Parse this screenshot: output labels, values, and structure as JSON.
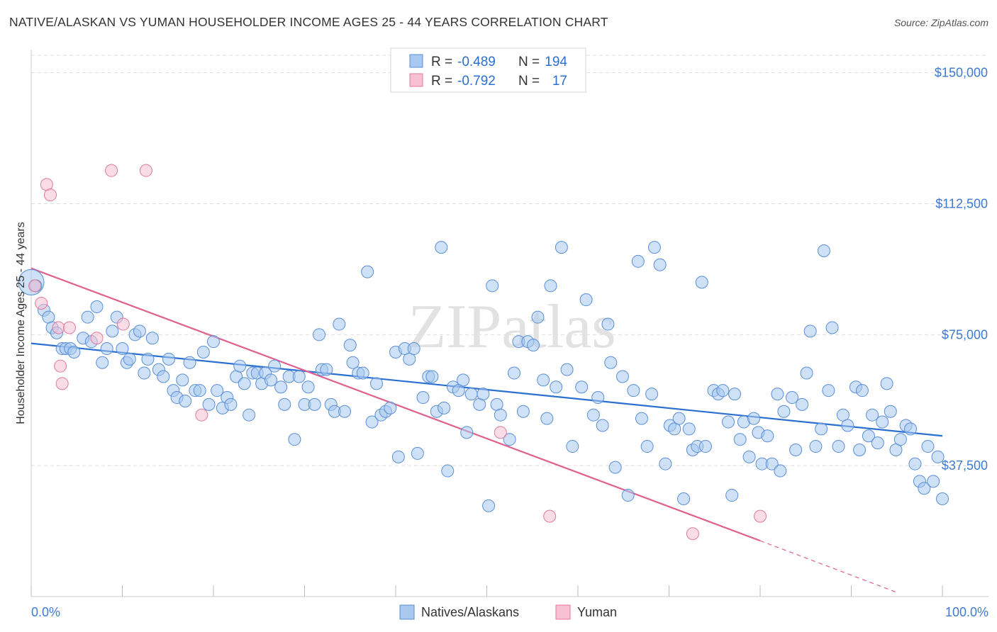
{
  "title": "NATIVE/ALASKAN VS YUMAN HOUSEHOLDER INCOME AGES 25 - 44 YEARS CORRELATION CHART",
  "source": "Source: ZipAtlas.com",
  "watermark": "ZIPatlas",
  "colors": {
    "blue_fill": "#a8c8f0",
    "blue_stroke": "#5a8fd6",
    "blue_line": "#2b6fd1",
    "pink_fill": "#f6c0d2",
    "pink_stroke": "#e07a9e",
    "pink_line": "#e0608e",
    "grid": "#dddddd",
    "accent_text": "#3d7ad0"
  },
  "legend": {
    "rows": [
      {
        "r_label": "R =",
        "r_value": "-0.489",
        "n_label": "N =",
        "n_value": "194"
      },
      {
        "r_label": "R =",
        "r_value": "-0.792",
        "n_label": "N =",
        "n_value": "17"
      }
    ]
  },
  "bottom_legend": [
    "Natives/Alaskans",
    "Yuman"
  ],
  "chart_data": {
    "type": "scatter",
    "ylabel": "Householder Income Ages 25 - 44 years",
    "xlabel": "",
    "x_tick_labels": [
      "0.0%",
      "100.0%"
    ],
    "y_tick_labels": [
      "$150,000",
      "$112,500",
      "$75,000",
      "$37,500"
    ],
    "y_ticks": [
      150000,
      112500,
      75000,
      37500
    ],
    "xlim": [
      0,
      100
    ],
    "ylim": [
      0,
      155000
    ],
    "grid": true,
    "legend_position": "top-center",
    "series": [
      {
        "name": "Natives/Alaskans",
        "r": -0.489,
        "n": 194,
        "trend": {
          "x0": 0,
          "y0": 72500,
          "x1": 100,
          "y1": 46000
        },
        "points": [
          [
            0,
            90000
          ],
          [
            0.5,
            89000
          ],
          [
            1.4,
            82000
          ],
          [
            1.9,
            80000
          ],
          [
            2.3,
            77000
          ],
          [
            2.8,
            75500
          ],
          [
            3.4,
            71000
          ],
          [
            3.8,
            71000
          ],
          [
            4.3,
            71000
          ],
          [
            4.7,
            70000
          ],
          [
            5.7,
            74000
          ],
          [
            6.2,
            80000
          ],
          [
            6.6,
            73000
          ],
          [
            7.2,
            83000
          ],
          [
            7.8,
            67000
          ],
          [
            8.3,
            71000
          ],
          [
            8.9,
            76000
          ],
          [
            9.4,
            80000
          ],
          [
            10.0,
            71000
          ],
          [
            10.5,
            67000
          ],
          [
            10.8,
            68000
          ],
          [
            11.4,
            75000
          ],
          [
            11.9,
            76000
          ],
          [
            12.4,
            64000
          ],
          [
            12.8,
            68000
          ],
          [
            13.3,
            74000
          ],
          [
            14.0,
            65000
          ],
          [
            14.5,
            63000
          ],
          [
            15.1,
            68000
          ],
          [
            15.6,
            59000
          ],
          [
            16.0,
            57000
          ],
          [
            16.6,
            62000
          ],
          [
            16.9,
            56000
          ],
          [
            17.4,
            67000
          ],
          [
            18.0,
            59000
          ],
          [
            18.5,
            59000
          ],
          [
            18.9,
            70000
          ],
          [
            19.5,
            55000
          ],
          [
            20.0,
            73000
          ],
          [
            20.4,
            59000
          ],
          [
            21.0,
            54000
          ],
          [
            21.5,
            57000
          ],
          [
            21.9,
            55000
          ],
          [
            22.5,
            63000
          ],
          [
            22.9,
            66000
          ],
          [
            23.4,
            61000
          ],
          [
            23.9,
            52000
          ],
          [
            24.3,
            64000
          ],
          [
            24.8,
            64000
          ],
          [
            25.3,
            61000
          ],
          [
            25.7,
            64000
          ],
          [
            26.3,
            62000
          ],
          [
            26.7,
            66000
          ],
          [
            27.4,
            60000
          ],
          [
            27.8,
            55000
          ],
          [
            28.3,
            63000
          ],
          [
            28.9,
            45000
          ],
          [
            29.4,
            63000
          ],
          [
            30.0,
            55000
          ],
          [
            30.4,
            60000
          ],
          [
            31.1,
            55000
          ],
          [
            31.6,
            75000
          ],
          [
            31.9,
            65000
          ],
          [
            32.4,
            65000
          ],
          [
            32.9,
            55000
          ],
          [
            33.3,
            53000
          ],
          [
            33.8,
            78000
          ],
          [
            34.4,
            53000
          ],
          [
            35.0,
            72000
          ],
          [
            35.3,
            67000
          ],
          [
            35.9,
            64000
          ],
          [
            36.4,
            64000
          ],
          [
            36.9,
            93000
          ],
          [
            37.4,
            50000
          ],
          [
            37.9,
            61000
          ],
          [
            38.4,
            52000
          ],
          [
            38.9,
            53000
          ],
          [
            39.4,
            54000
          ],
          [
            40.0,
            70000
          ],
          [
            40.3,
            40000
          ],
          [
            41.0,
            71000
          ],
          [
            41.5,
            68000
          ],
          [
            42.0,
            71000
          ],
          [
            42.4,
            41000
          ],
          [
            43.0,
            57000
          ],
          [
            43.6,
            63000
          ],
          [
            44.0,
            63000
          ],
          [
            44.5,
            53000
          ],
          [
            45.0,
            100000
          ],
          [
            45.3,
            54000
          ],
          [
            45.7,
            36000
          ],
          [
            46.3,
            60000
          ],
          [
            46.9,
            59000
          ],
          [
            47.4,
            62000
          ],
          [
            47.8,
            47000
          ],
          [
            48.3,
            58000
          ],
          [
            49.2,
            55000
          ],
          [
            49.6,
            58000
          ],
          [
            50.2,
            26000
          ],
          [
            50.6,
            89000
          ],
          [
            51.1,
            55000
          ],
          [
            51.5,
            52000
          ],
          [
            52.5,
            45000
          ],
          [
            53.0,
            64000
          ],
          [
            53.5,
            73000
          ],
          [
            54.0,
            53000
          ],
          [
            54.5,
            73000
          ],
          [
            55.1,
            72000
          ],
          [
            55.6,
            80000
          ],
          [
            56.2,
            62000
          ],
          [
            56.6,
            51000
          ],
          [
            57.0,
            89000
          ],
          [
            57.6,
            60000
          ],
          [
            58.2,
            100000
          ],
          [
            58.8,
            65000
          ],
          [
            59.4,
            43000
          ],
          [
            60.4,
            60000
          ],
          [
            60.9,
            85000
          ],
          [
            61.7,
            52000
          ],
          [
            62.2,
            57000
          ],
          [
            62.7,
            49000
          ],
          [
            63.3,
            78000
          ],
          [
            63.6,
            67000
          ],
          [
            64.1,
            37000
          ],
          [
            64.9,
            63000
          ],
          [
            65.5,
            29000
          ],
          [
            66.1,
            59000
          ],
          [
            66.6,
            96000
          ],
          [
            67.0,
            51000
          ],
          [
            67.6,
            43000
          ],
          [
            68.1,
            58000
          ],
          [
            68.4,
            100000
          ],
          [
            69.0,
            95000
          ],
          [
            69.6,
            38000
          ],
          [
            70.1,
            49000
          ],
          [
            70.6,
            48000
          ],
          [
            71.1,
            51000
          ],
          [
            71.6,
            28000
          ],
          [
            72.2,
            48000
          ],
          [
            72.6,
            42000
          ],
          [
            73.1,
            43000
          ],
          [
            73.6,
            90000
          ],
          [
            74.0,
            43000
          ],
          [
            74.9,
            59000
          ],
          [
            75.4,
            58000
          ],
          [
            75.9,
            59000
          ],
          [
            76.5,
            50000
          ],
          [
            76.9,
            29000
          ],
          [
            77.2,
            58000
          ],
          [
            77.8,
            45000
          ],
          [
            78.2,
            50000
          ],
          [
            78.8,
            40000
          ],
          [
            79.3,
            51000
          ],
          [
            79.8,
            47000
          ],
          [
            80.2,
            38000
          ],
          [
            80.8,
            46000
          ],
          [
            81.3,
            38000
          ],
          [
            81.9,
            58000
          ],
          [
            82.2,
            36000
          ],
          [
            82.6,
            53000
          ],
          [
            83.5,
            57000
          ],
          [
            83.9,
            42000
          ],
          [
            84.6,
            55000
          ],
          [
            85.1,
            64000
          ],
          [
            85.5,
            76000
          ],
          [
            86.1,
            43000
          ],
          [
            86.7,
            48000
          ],
          [
            87.0,
            99000
          ],
          [
            87.5,
            59000
          ],
          [
            87.9,
            77000
          ],
          [
            88.6,
            43000
          ],
          [
            89.1,
            52000
          ],
          [
            89.6,
            49000
          ],
          [
            90.5,
            60000
          ],
          [
            90.9,
            42000
          ],
          [
            91.2,
            59000
          ],
          [
            91.9,
            46000
          ],
          [
            92.3,
            52000
          ],
          [
            92.9,
            44000
          ],
          [
            93.4,
            50000
          ],
          [
            93.9,
            61000
          ],
          [
            94.3,
            53000
          ],
          [
            94.9,
            42000
          ],
          [
            95.4,
            45000
          ],
          [
            96.0,
            49000
          ],
          [
            96.5,
            48000
          ],
          [
            97.0,
            38000
          ],
          [
            97.5,
            33000
          ],
          [
            98.0,
            31000
          ],
          [
            98.4,
            43000
          ],
          [
            99.0,
            33000
          ],
          [
            99.5,
            40000
          ],
          [
            100.0,
            28000
          ]
        ]
      },
      {
        "name": "Yuman",
        "r": -0.792,
        "n": 17,
        "trend": {
          "x0": 0,
          "y0": 94000,
          "x1": 80,
          "y1": 16000,
          "dash_to_x": 95,
          "dash_to_y": 1200
        },
        "points": [
          [
            0.4,
            89000
          ],
          [
            1.1,
            84000
          ],
          [
            1.7,
            118000
          ],
          [
            2.1,
            115000
          ],
          [
            3.0,
            77000
          ],
          [
            3.2,
            66000
          ],
          [
            3.4,
            61000
          ],
          [
            4.2,
            77000
          ],
          [
            7.2,
            74000
          ],
          [
            8.8,
            122000
          ],
          [
            10.1,
            78000
          ],
          [
            12.6,
            122000
          ],
          [
            18.7,
            52000
          ],
          [
            51.5,
            47000
          ],
          [
            56.9,
            23000
          ],
          [
            72.6,
            18000
          ],
          [
            80.0,
            23000
          ]
        ]
      }
    ]
  }
}
